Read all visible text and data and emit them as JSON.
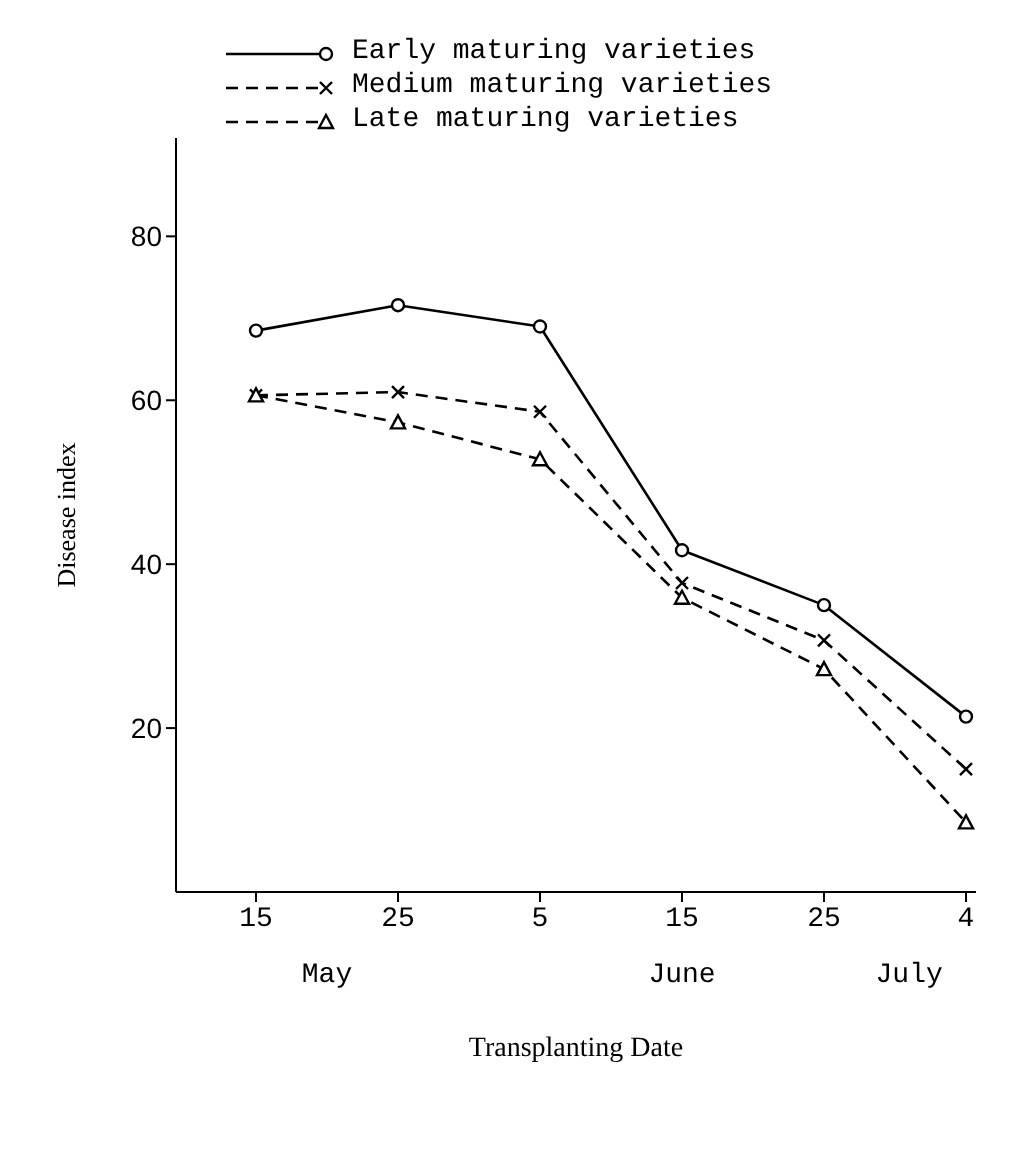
{
  "chart_data": {
    "type": "line",
    "xlabel": "Transplanting Date",
    "ylabel": "Disease index",
    "categories": [
      "15",
      "25",
      "5",
      "15",
      "25",
      "4"
    ],
    "annotations": [
      "May",
      "June",
      "July"
    ],
    "series": [
      {
        "name": "Early maturing varieties",
        "color": "#000000",
        "marker": "circle",
        "line_style": "solid",
        "values": [
          68.5,
          71.6,
          69,
          41.7,
          35,
          21.4
        ]
      },
      {
        "name": "Medium maturing varieties",
        "color": "#000000",
        "marker": "cross",
        "line_style": "dashed",
        "values": [
          60.6,
          61,
          58.6,
          37.7,
          30.7,
          15
        ]
      },
      {
        "name": "Late maturing varieties",
        "color": "#000000",
        "marker": "triangle",
        "line_style": "dashed",
        "values": [
          60.6,
          57.3,
          52.8,
          35.9,
          27.2,
          8.5
        ]
      }
    ],
    "ylim": [
      0,
      92
    ],
    "yticks": [
      20,
      40,
      60,
      80
    ],
    "grid": false,
    "legend": "top"
  }
}
